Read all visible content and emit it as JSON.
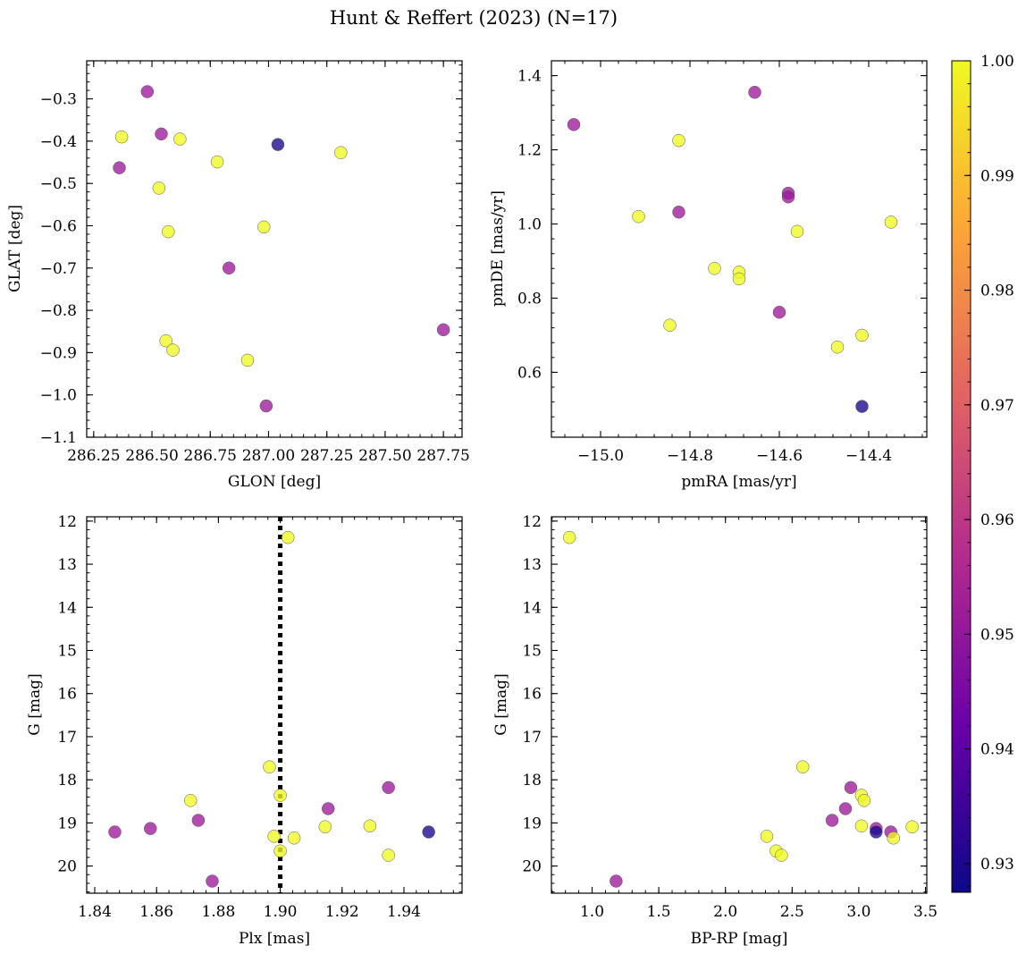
{
  "figure": {
    "title": "Hunt & Reffert (2023) (N=17)"
  },
  "colorbar": {
    "vmin": 0.9275,
    "vmax": 1.0,
    "ticks": [
      0.93,
      0.94,
      0.95,
      0.96,
      0.97,
      0.98,
      0.99,
      1.0
    ],
    "tick_labels": [
      "0.93",
      "0.94",
      "0.95",
      "0.96",
      "0.97",
      "0.98",
      "0.99",
      "1.00"
    ],
    "colormap": "plasma"
  },
  "chart_data": [
    {
      "type": "scatter",
      "id": "glon-glat",
      "xlabel": "GLON [deg]",
      "ylabel": "GLAT [deg]",
      "xlim": [
        286.22,
        287.83
      ],
      "ylim": [
        -1.1,
        -0.21
      ],
      "inverted_y": false,
      "xticks": [
        286.25,
        286.5,
        286.75,
        287.0,
        287.25,
        287.5,
        287.75
      ],
      "xtick_labels": [
        "286.25",
        "286.50",
        "286.75",
        "287.00",
        "287.25",
        "287.50",
        "287.75"
      ],
      "yticks": [
        -1.1,
        -1.0,
        -0.9,
        -0.8,
        -0.7,
        -0.6,
        -0.5,
        -0.4,
        -0.3
      ],
      "ytick_labels": [
        "−1.1",
        "−1.0",
        "−0.9",
        "−0.8",
        "−0.7",
        "−0.6",
        "−0.5",
        "−0.4",
        "−0.3"
      ],
      "points": [
        {
          "x": 286.48,
          "y": -0.283,
          "c": 0.952
        },
        {
          "x": 286.54,
          "y": -0.383,
          "c": 0.952
        },
        {
          "x": 286.37,
          "y": -0.39,
          "c": 1.0
        },
        {
          "x": 286.62,
          "y": -0.395,
          "c": 1.0
        },
        {
          "x": 287.04,
          "y": -0.408,
          "c": 0.929
        },
        {
          "x": 287.31,
          "y": -0.427,
          "c": 1.0
        },
        {
          "x": 286.78,
          "y": -0.449,
          "c": 1.0
        },
        {
          "x": 286.36,
          "y": -0.463,
          "c": 0.952
        },
        {
          "x": 286.53,
          "y": -0.511,
          "c": 1.0
        },
        {
          "x": 286.98,
          "y": -0.603,
          "c": 1.0
        },
        {
          "x": 286.57,
          "y": -0.614,
          "c": 1.0
        },
        {
          "x": 286.83,
          "y": -0.7,
          "c": 0.952
        },
        {
          "x": 287.75,
          "y": -0.846,
          "c": 0.952
        },
        {
          "x": 286.56,
          "y": -0.872,
          "c": 1.0
        },
        {
          "x": 286.59,
          "y": -0.894,
          "c": 1.0
        },
        {
          "x": 286.91,
          "y": -0.918,
          "c": 1.0
        },
        {
          "x": 286.99,
          "y": -1.026,
          "c": 0.952
        }
      ]
    },
    {
      "type": "scatter",
      "id": "pmra-pmde",
      "xlabel": "pmRA [mas/yr]",
      "ylabel": "pmDE [mas/yr]",
      "xlim": [
        -15.11,
        -14.27
      ],
      "ylim": [
        0.425,
        1.44
      ],
      "inverted_y": false,
      "xticks": [
        -15.0,
        -14.8,
        -14.6,
        -14.4
      ],
      "xtick_labels": [
        "−15.0",
        "−14.8",
        "−14.6",
        "−14.4"
      ],
      "yticks": [
        0.6,
        0.8,
        1.0,
        1.2,
        1.4
      ],
      "ytick_labels": [
        "0.6",
        "0.8",
        "1.0",
        "1.2",
        "1.4"
      ],
      "points": [
        {
          "x": -14.655,
          "y": 1.355,
          "c": 0.952
        },
        {
          "x": -15.06,
          "y": 1.268,
          "c": 0.952
        },
        {
          "x": -14.825,
          "y": 1.225,
          "c": 1.0
        },
        {
          "x": -14.58,
          "y": 1.083,
          "c": 0.952
        },
        {
          "x": -14.58,
          "y": 1.073,
          "c": 0.952
        },
        {
          "x": -14.825,
          "y": 1.032,
          "c": 0.952
        },
        {
          "x": -14.915,
          "y": 1.02,
          "c": 1.0
        },
        {
          "x": -14.35,
          "y": 1.005,
          "c": 1.0
        },
        {
          "x": -14.56,
          "y": 0.98,
          "c": 1.0
        },
        {
          "x": -14.745,
          "y": 0.88,
          "c": 1.0
        },
        {
          "x": -14.69,
          "y": 0.87,
          "c": 1.0
        },
        {
          "x": -14.69,
          "y": 0.852,
          "c": 1.0
        },
        {
          "x": -14.6,
          "y": 0.762,
          "c": 0.952
        },
        {
          "x": -14.845,
          "y": 0.727,
          "c": 1.0
        },
        {
          "x": -14.415,
          "y": 0.7,
          "c": 1.0
        },
        {
          "x": -14.47,
          "y": 0.668,
          "c": 1.0
        },
        {
          "x": -14.415,
          "y": 0.508,
          "c": 0.929
        }
      ]
    },
    {
      "type": "scatter",
      "id": "plx-g",
      "xlabel": "Plx [mas]",
      "ylabel": "G [mag]",
      "xlim": [
        1.8374,
        1.9588
      ],
      "ylim": [
        20.63,
        11.9
      ],
      "inverted_y": true,
      "vline": {
        "x": 1.9,
        "style": "dotted"
      },
      "xticks": [
        1.84,
        1.86,
        1.88,
        1.9,
        1.92,
        1.94
      ],
      "xtick_labels": [
        "1.84",
        "1.86",
        "1.88",
        "1.90",
        "1.92",
        "1.94"
      ],
      "yticks": [
        12,
        13,
        14,
        15,
        16,
        17,
        18,
        19,
        20
      ],
      "ytick_labels": [
        "12",
        "13",
        "14",
        "15",
        "16",
        "17",
        "18",
        "19",
        "20"
      ],
      "points": [
        {
          "x": 1.9025,
          "y": 12.38,
          "c": 1.0
        },
        {
          "x": 1.8965,
          "y": 17.7,
          "c": 1.0
        },
        {
          "x": 1.935,
          "y": 18.18,
          "c": 0.952
        },
        {
          "x": 1.9,
          "y": 18.36,
          "c": 1.0
        },
        {
          "x": 1.871,
          "y": 18.48,
          "c": 1.0
        },
        {
          "x": 1.9155,
          "y": 18.67,
          "c": 0.952
        },
        {
          "x": 1.8735,
          "y": 18.94,
          "c": 0.952
        },
        {
          "x": 1.929,
          "y": 19.07,
          "c": 1.0
        },
        {
          "x": 1.9145,
          "y": 19.09,
          "c": 1.0
        },
        {
          "x": 1.858,
          "y": 19.13,
          "c": 0.952
        },
        {
          "x": 1.8465,
          "y": 19.21,
          "c": 0.952
        },
        {
          "x": 1.948,
          "y": 19.21,
          "c": 0.929
        },
        {
          "x": 1.898,
          "y": 19.31,
          "c": 1.0
        },
        {
          "x": 1.9045,
          "y": 19.35,
          "c": 1.0
        },
        {
          "x": 1.9,
          "y": 19.65,
          "c": 1.0
        },
        {
          "x": 1.935,
          "y": 19.75,
          "c": 1.0
        },
        {
          "x": 1.878,
          "y": 20.35,
          "c": 0.952
        }
      ]
    },
    {
      "type": "scatter",
      "id": "bprp-g",
      "xlabel": "BP-RP [mag]",
      "ylabel": "G [mag]",
      "xlim": [
        0.695,
        3.51
      ],
      "ylim": [
        20.63,
        11.9
      ],
      "inverted_y": true,
      "xticks": [
        1.0,
        1.5,
        2.0,
        2.5,
        3.0,
        3.5
      ],
      "xtick_labels": [
        "1.0",
        "1.5",
        "2.0",
        "2.5",
        "3.0",
        "3.5"
      ],
      "yticks": [
        12,
        13,
        14,
        15,
        16,
        17,
        18,
        19,
        20
      ],
      "ytick_labels": [
        "12",
        "13",
        "14",
        "15",
        "16",
        "17",
        "18",
        "19",
        "20"
      ],
      "points": [
        {
          "x": 0.83,
          "y": 12.38,
          "c": 1.0
        },
        {
          "x": 2.58,
          "y": 17.7,
          "c": 1.0
        },
        {
          "x": 2.94,
          "y": 18.18,
          "c": 0.952
        },
        {
          "x": 3.02,
          "y": 18.36,
          "c": 1.0
        },
        {
          "x": 3.04,
          "y": 18.48,
          "c": 1.0
        },
        {
          "x": 2.9,
          "y": 18.67,
          "c": 0.952
        },
        {
          "x": 2.8,
          "y": 18.94,
          "c": 0.952
        },
        {
          "x": 3.02,
          "y": 19.07,
          "c": 1.0
        },
        {
          "x": 3.4,
          "y": 19.09,
          "c": 1.0
        },
        {
          "x": 3.13,
          "y": 19.13,
          "c": 0.952
        },
        {
          "x": 3.24,
          "y": 19.21,
          "c": 0.952
        },
        {
          "x": 3.13,
          "y": 19.21,
          "c": 0.929
        },
        {
          "x": 2.31,
          "y": 19.31,
          "c": 1.0
        },
        {
          "x": 3.26,
          "y": 19.35,
          "c": 1.0
        },
        {
          "x": 2.38,
          "y": 19.65,
          "c": 1.0
        },
        {
          "x": 2.42,
          "y": 19.75,
          "c": 1.0
        },
        {
          "x": 1.18,
          "y": 20.35,
          "c": 0.952
        }
      ]
    }
  ]
}
